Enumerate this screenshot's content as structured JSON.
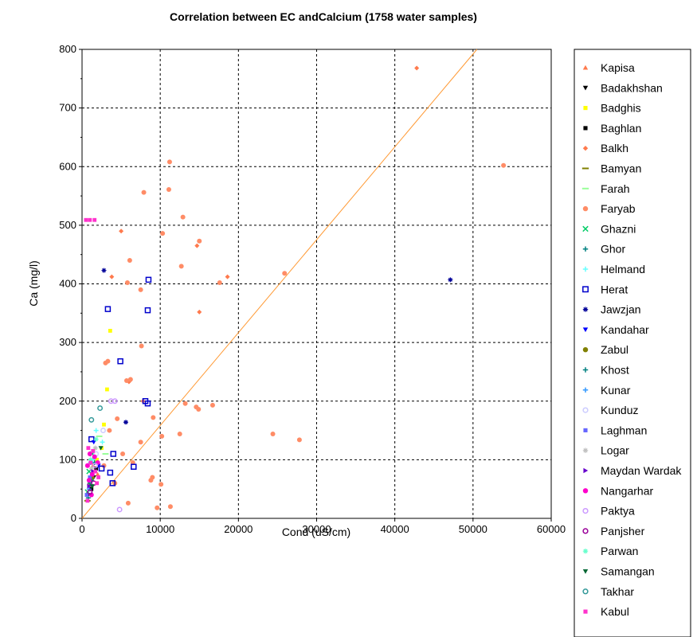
{
  "chart_data": {
    "type": "scatter",
    "title": "Correlation between EC andCalcium (1758 water samples)",
    "xlabel": "Cond (uS/cm)",
    "ylabel": "Ca (mg/l)",
    "xlim": [
      0,
      60000
    ],
    "ylim": [
      0,
      800
    ],
    "x_ticks": [
      "0",
      "10000",
      "20000",
      "30000",
      "40000",
      "50000",
      "60000"
    ],
    "y_ticks": [
      "0",
      "100",
      "200",
      "300",
      "400",
      "500",
      "600",
      "700",
      "800"
    ],
    "grid": true,
    "legend_position": "right",
    "trendline": {
      "x": [
        0,
        50500
      ],
      "y": [
        0,
        800
      ],
      "color": "#ff9933"
    },
    "series": [
      {
        "name": "Kapisa",
        "marker": "triangle-up",
        "color": "#ff7a4d",
        "points": [
          [
            900,
            60
          ],
          [
            1400,
            90
          ],
          [
            2000,
            75
          ]
        ]
      },
      {
        "name": "Badakhshan",
        "marker": "triangle-down",
        "color": "#000000",
        "points": [
          [
            800,
            40
          ],
          [
            1500,
            70
          ]
        ]
      },
      {
        "name": "Badghis",
        "marker": "square",
        "color": "#ffff00",
        "points": [
          [
            2500,
            120
          ],
          [
            3200,
            220
          ],
          [
            3600,
            320
          ],
          [
            2800,
            160
          ],
          [
            1900,
            100
          ]
        ]
      },
      {
        "name": "Baghlan",
        "marker": "square",
        "color": "#000000",
        "points": [
          [
            1200,
            50
          ],
          [
            1800,
            85
          ]
        ]
      },
      {
        "name": "Balkh",
        "marker": "diamond",
        "color": "#ff7a4d",
        "points": [
          [
            42800,
            768
          ],
          [
            15000,
            352
          ],
          [
            14700,
            465
          ],
          [
            18600,
            412
          ],
          [
            5000,
            490
          ],
          [
            3800,
            412
          ],
          [
            7800,
            200
          ],
          [
            6000,
            233
          ]
        ]
      },
      {
        "name": "Bamyan",
        "marker": "dash",
        "color": "#808000",
        "points": [
          [
            700,
            30
          ],
          [
            1100,
            55
          ]
        ]
      },
      {
        "name": "Farah",
        "marker": "dash",
        "color": "#99ff99",
        "points": [
          [
            2200,
            140
          ],
          [
            3000,
            110
          ]
        ]
      },
      {
        "name": "Faryab",
        "marker": "circle",
        "color": "#ff8c66",
        "points": [
          [
            53900,
            602
          ],
          [
            11200,
            608
          ],
          [
            11100,
            561
          ],
          [
            7900,
            556
          ],
          [
            10300,
            486
          ],
          [
            12900,
            514
          ],
          [
            15000,
            473
          ],
          [
            12700,
            430
          ],
          [
            6100,
            440
          ],
          [
            17600,
            402
          ],
          [
            5800,
            402
          ],
          [
            7500,
            390
          ],
          [
            25900,
            418
          ],
          [
            3300,
            268
          ],
          [
            3000,
            265
          ],
          [
            7600,
            294
          ],
          [
            9100,
            172
          ],
          [
            5700,
            235
          ],
          [
            6200,
            237
          ],
          [
            13200,
            196
          ],
          [
            14900,
            186
          ],
          [
            14600,
            190
          ],
          [
            16700,
            193
          ],
          [
            10200,
            140
          ],
          [
            12500,
            144
          ],
          [
            24400,
            144
          ],
          [
            27800,
            134
          ],
          [
            9000,
            70
          ],
          [
            8800,
            65
          ],
          [
            10100,
            58
          ],
          [
            9600,
            18
          ],
          [
            11300,
            20
          ],
          [
            5900,
            26
          ],
          [
            7500,
            130
          ],
          [
            4500,
            170
          ],
          [
            3500,
            150
          ],
          [
            2800,
            90
          ],
          [
            4200,
            60
          ],
          [
            6500,
            95
          ],
          [
            5200,
            110
          ]
        ]
      },
      {
        "name": "Ghazni",
        "marker": "x",
        "color": "#00cc66",
        "points": [
          [
            900,
            80
          ],
          [
            1300,
            110
          ],
          [
            700,
            45
          ]
        ]
      },
      {
        "name": "Ghor",
        "marker": "plus",
        "color": "#008080",
        "points": [
          [
            1000,
            60
          ],
          [
            1600,
            95
          ]
        ]
      },
      {
        "name": "Helmand",
        "marker": "plus",
        "color": "#66ffff",
        "points": [
          [
            1800,
            150
          ],
          [
            2600,
            130
          ],
          [
            1400,
            100
          ]
        ]
      },
      {
        "name": "Herat",
        "marker": "square-open",
        "color": "#0000cc",
        "points": [
          [
            8500,
            407
          ],
          [
            3300,
            357
          ],
          [
            8400,
            355
          ],
          [
            4900,
            268
          ],
          [
            8100,
            200
          ],
          [
            8400,
            196
          ],
          [
            6600,
            88
          ],
          [
            3600,
            78
          ],
          [
            4000,
            110
          ],
          [
            1200,
            135
          ],
          [
            2500,
            85
          ],
          [
            3900,
            60
          ]
        ]
      },
      {
        "name": "Jawzjan",
        "marker": "star",
        "color": "#000099",
        "points": [
          [
            47100,
            407
          ],
          [
            2800,
            423
          ],
          [
            5600,
            164
          ]
        ]
      },
      {
        "name": "Kandahar",
        "marker": "triangle-down",
        "color": "#0000ff",
        "points": [
          [
            1500,
            130
          ],
          [
            2100,
            90
          ]
        ]
      },
      {
        "name": "Zabul",
        "marker": "circle",
        "color": "#808000",
        "points": [
          [
            1300,
            70
          ]
        ]
      },
      {
        "name": "Khost",
        "marker": "plus",
        "color": "#008080",
        "points": [
          [
            800,
            35
          ],
          [
            1200,
            65
          ]
        ]
      },
      {
        "name": "Kunar",
        "marker": "plus",
        "color": "#3399ff",
        "points": [
          [
            900,
            50
          ],
          [
            1100,
            95
          ]
        ]
      },
      {
        "name": "Kunduz",
        "marker": "circle-open",
        "color": "#ccccff",
        "points": [
          [
            1800,
            110
          ],
          [
            2700,
            150
          ]
        ]
      },
      {
        "name": "Laghman",
        "marker": "square",
        "color": "#6666ff",
        "points": [
          [
            600,
            40
          ],
          [
            1000,
            70
          ]
        ]
      },
      {
        "name": "Logar",
        "marker": "star",
        "color": "#c0c0c0",
        "points": [
          [
            1200,
            85
          ],
          [
            1700,
            120
          ]
        ]
      },
      {
        "name": "Maydan Wardak",
        "marker": "triangle-right",
        "color": "#6600cc",
        "points": [
          [
            900,
            55
          ],
          [
            1400,
            80
          ]
        ]
      },
      {
        "name": "Nangarhar",
        "marker": "circle",
        "color": "#ff00cc",
        "points": [
          [
            700,
            90
          ],
          [
            1000,
            110
          ],
          [
            1300,
            75
          ],
          [
            1600,
            105
          ],
          [
            900,
            65
          ],
          [
            1200,
            40
          ],
          [
            2000,
            95
          ]
        ]
      },
      {
        "name": "Paktya",
        "marker": "circle-open",
        "color": "#cc99ff",
        "points": [
          [
            4200,
            200
          ],
          [
            3700,
            200
          ],
          [
            4800,
            15
          ],
          [
            1700,
            90
          ]
        ]
      },
      {
        "name": "Panjsher",
        "marker": "circle-open",
        "color": "#990099",
        "points": [
          [
            1000,
            45
          ],
          [
            1500,
            60
          ]
        ]
      },
      {
        "name": "Parwan",
        "marker": "star",
        "color": "#66ffcc",
        "points": [
          [
            1100,
            100
          ],
          [
            1800,
            135
          ]
        ]
      },
      {
        "name": "Samangan",
        "marker": "triangle-down",
        "color": "#006633",
        "points": [
          [
            1300,
            55
          ],
          [
            2400,
            120
          ]
        ]
      },
      {
        "name": "Takhar",
        "marker": "circle-open",
        "color": "#339999",
        "points": [
          [
            1200,
            168
          ],
          [
            2300,
            188
          ]
        ]
      },
      {
        "name": "Kabul",
        "marker": "square",
        "color": "#ff33cc",
        "points": [
          [
            500,
            509
          ],
          [
            1000,
            509
          ],
          [
            1600,
            509
          ],
          [
            800,
            120
          ],
          [
            1100,
            95
          ],
          [
            1400,
            115
          ],
          [
            1700,
            80
          ],
          [
            2100,
            70
          ],
          [
            700,
            30
          ],
          [
            1900,
            60
          ]
        ]
      }
    ]
  }
}
